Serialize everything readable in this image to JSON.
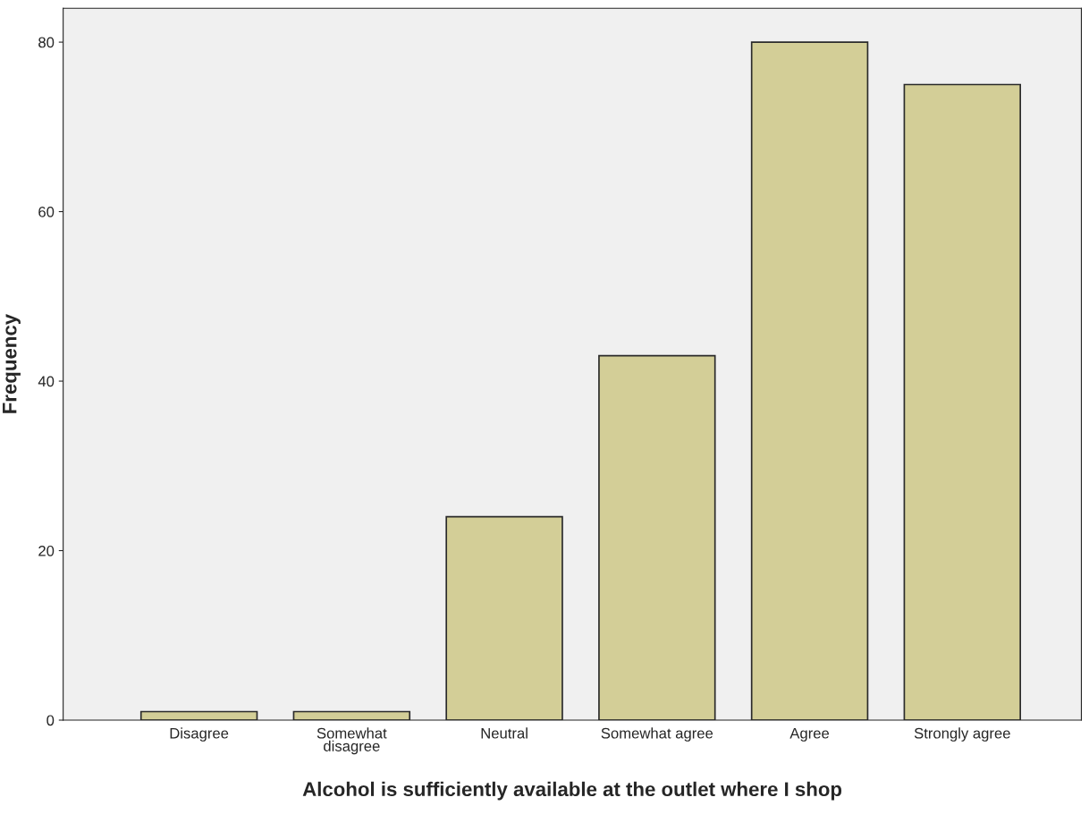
{
  "chart_data": {
    "type": "bar",
    "xlabel": "Alcohol is sufficiently available at the outlet where I shop",
    "ylabel": "Frequency",
    "categories": [
      "Disagree",
      "Somewhat\ndisagree",
      "Neutral",
      "Somewhat agree",
      "Agree",
      "Strongly agree"
    ],
    "values": [
      1,
      1,
      24,
      43,
      80,
      75
    ],
    "color": "#d3ce97",
    "ylim": [
      0,
      84
    ],
    "yticks": [
      0,
      20,
      40,
      60,
      80
    ],
    "grid": false,
    "legend": false
  }
}
